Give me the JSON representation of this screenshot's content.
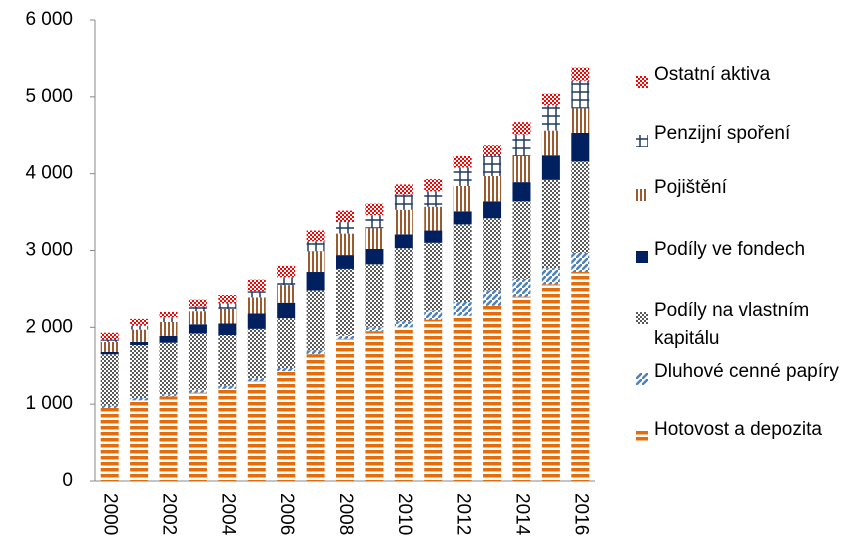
{
  "chart_data": {
    "type": "bar",
    "stacked": true,
    "categories": [
      "2000",
      null,
      "2002",
      null,
      "2004",
      null,
      "2006",
      null,
      "2008",
      null,
      "2010",
      null,
      "2012",
      null,
      "2014",
      null,
      "2016"
    ],
    "series": [
      {
        "name": "Hotovost a depozita",
        "color": "#e46c0a",
        "values": [
          950,
          1050,
          1100,
          1150,
          1200,
          1300,
          1430,
          1650,
          1850,
          1950,
          2000,
          2100,
          2150,
          2280,
          2400,
          2560,
          2720
        ]
      },
      {
        "name": "Dluhové cenné papíry",
        "color": "#4f81bd",
        "values": [
          30,
          30,
          30,
          40,
          40,
          40,
          40,
          50,
          50,
          50,
          80,
          120,
          180,
          200,
          230,
          210,
          250
        ]
      },
      {
        "name": "Podíly na vlastním kapitálu",
        "color": "#595959",
        "values": [
          670,
          690,
          670,
          730,
          660,
          640,
          650,
          780,
          860,
          820,
          950,
          880,
          1010,
          940,
          1010,
          1150,
          1190
        ]
      },
      {
        "name": "Podíly ve fondech",
        "color": "#002060",
        "values": [
          30,
          40,
          90,
          120,
          150,
          200,
          200,
          240,
          180,
          200,
          180,
          160,
          170,
          220,
          250,
          320,
          370
        ]
      },
      {
        "name": "Pojištění",
        "color": "#9c5b2e",
        "values": [
          130,
          160,
          180,
          170,
          190,
          210,
          230,
          270,
          280,
          270,
          320,
          310,
          330,
          330,
          340,
          320,
          320
        ]
      },
      {
        "name": "Penzijní spoření",
        "color": "#1f3864",
        "values": [
          30,
          50,
          60,
          60,
          70,
          80,
          100,
          130,
          150,
          170,
          200,
          200,
          240,
          260,
          280,
          330,
          360
        ]
      },
      {
        "name": "Ostatní aktiva",
        "color": "#ff0000",
        "values": [
          90,
          90,
          70,
          90,
          110,
          150,
          150,
          140,
          150,
          150,
          130,
          160,
          150,
          140,
          160,
          150,
          170
        ]
      }
    ],
    "ylim": [
      0,
      6000
    ],
    "yticks": [
      {
        "value": 0,
        "label": "0"
      },
      {
        "value": 1000,
        "label": "1 000"
      },
      {
        "value": 2000,
        "label": "2 000"
      },
      {
        "value": 3000,
        "label": "3 000"
      },
      {
        "value": 4000,
        "label": "4 000"
      },
      {
        "value": 5000,
        "label": "5 000"
      },
      {
        "value": 6000,
        "label": "6 000"
      }
    ],
    "legend": "right"
  }
}
